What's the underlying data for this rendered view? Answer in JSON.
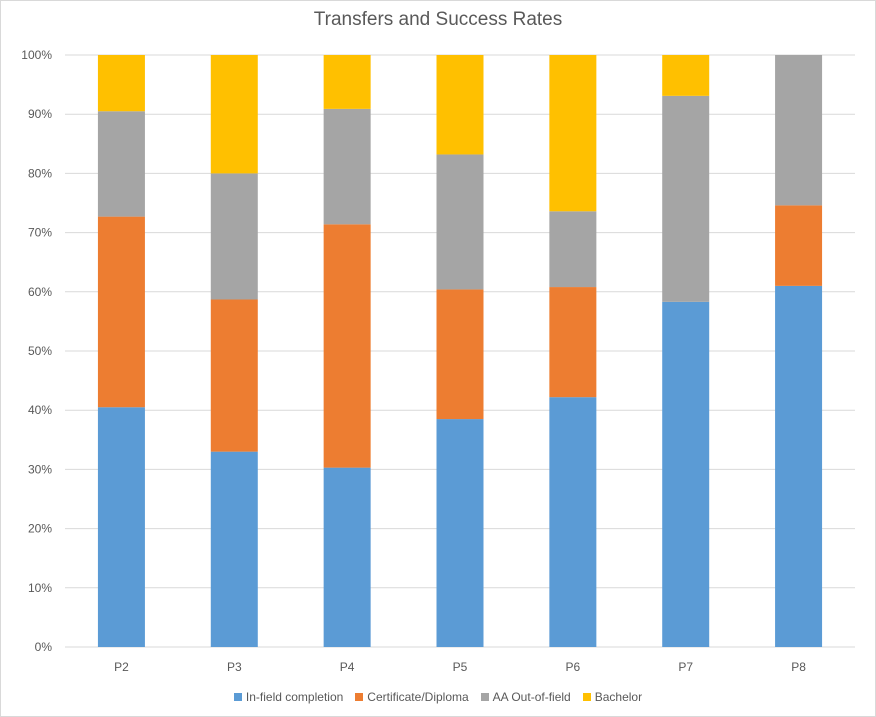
{
  "chart_data": {
    "type": "bar",
    "stacked": true,
    "normalized": true,
    "title": "Transfers and Success Rates",
    "xlabel": "",
    "ylabel": "",
    "categories": [
      "P2",
      "P3",
      "P4",
      "P5",
      "P6",
      "P7",
      "P8"
    ],
    "ylim": [
      0,
      100
    ],
    "yticks": [
      0,
      10,
      20,
      30,
      40,
      50,
      60,
      70,
      80,
      90,
      100
    ],
    "ytick_labels": [
      "0%",
      "10%",
      "20%",
      "30%",
      "40%",
      "50%",
      "60%",
      "70%",
      "80%",
      "90%",
      "100%"
    ],
    "grid": true,
    "legend_position": "bottom",
    "series": [
      {
        "name": "In-field completion",
        "color": "#5b9bd5",
        "values": [
          40.5,
          33.0,
          30.3,
          38.5,
          42.2,
          58.3,
          61.0
        ]
      },
      {
        "name": "Certificate/Diploma",
        "color": "#ed7d31",
        "values": [
          32.2,
          25.7,
          41.1,
          21.9,
          18.6,
          0,
          13.6
        ]
      },
      {
        "name": "AA Out-of-field",
        "color": "#a5a5a5",
        "values": [
          17.8,
          21.3,
          19.5,
          22.8,
          12.8,
          34.8,
          25.4
        ]
      },
      {
        "name": "Bachelor",
        "color": "#ffc000",
        "values": [
          9.5,
          20.0,
          9.1,
          16.8,
          26.4,
          6.9,
          0
        ]
      }
    ]
  }
}
